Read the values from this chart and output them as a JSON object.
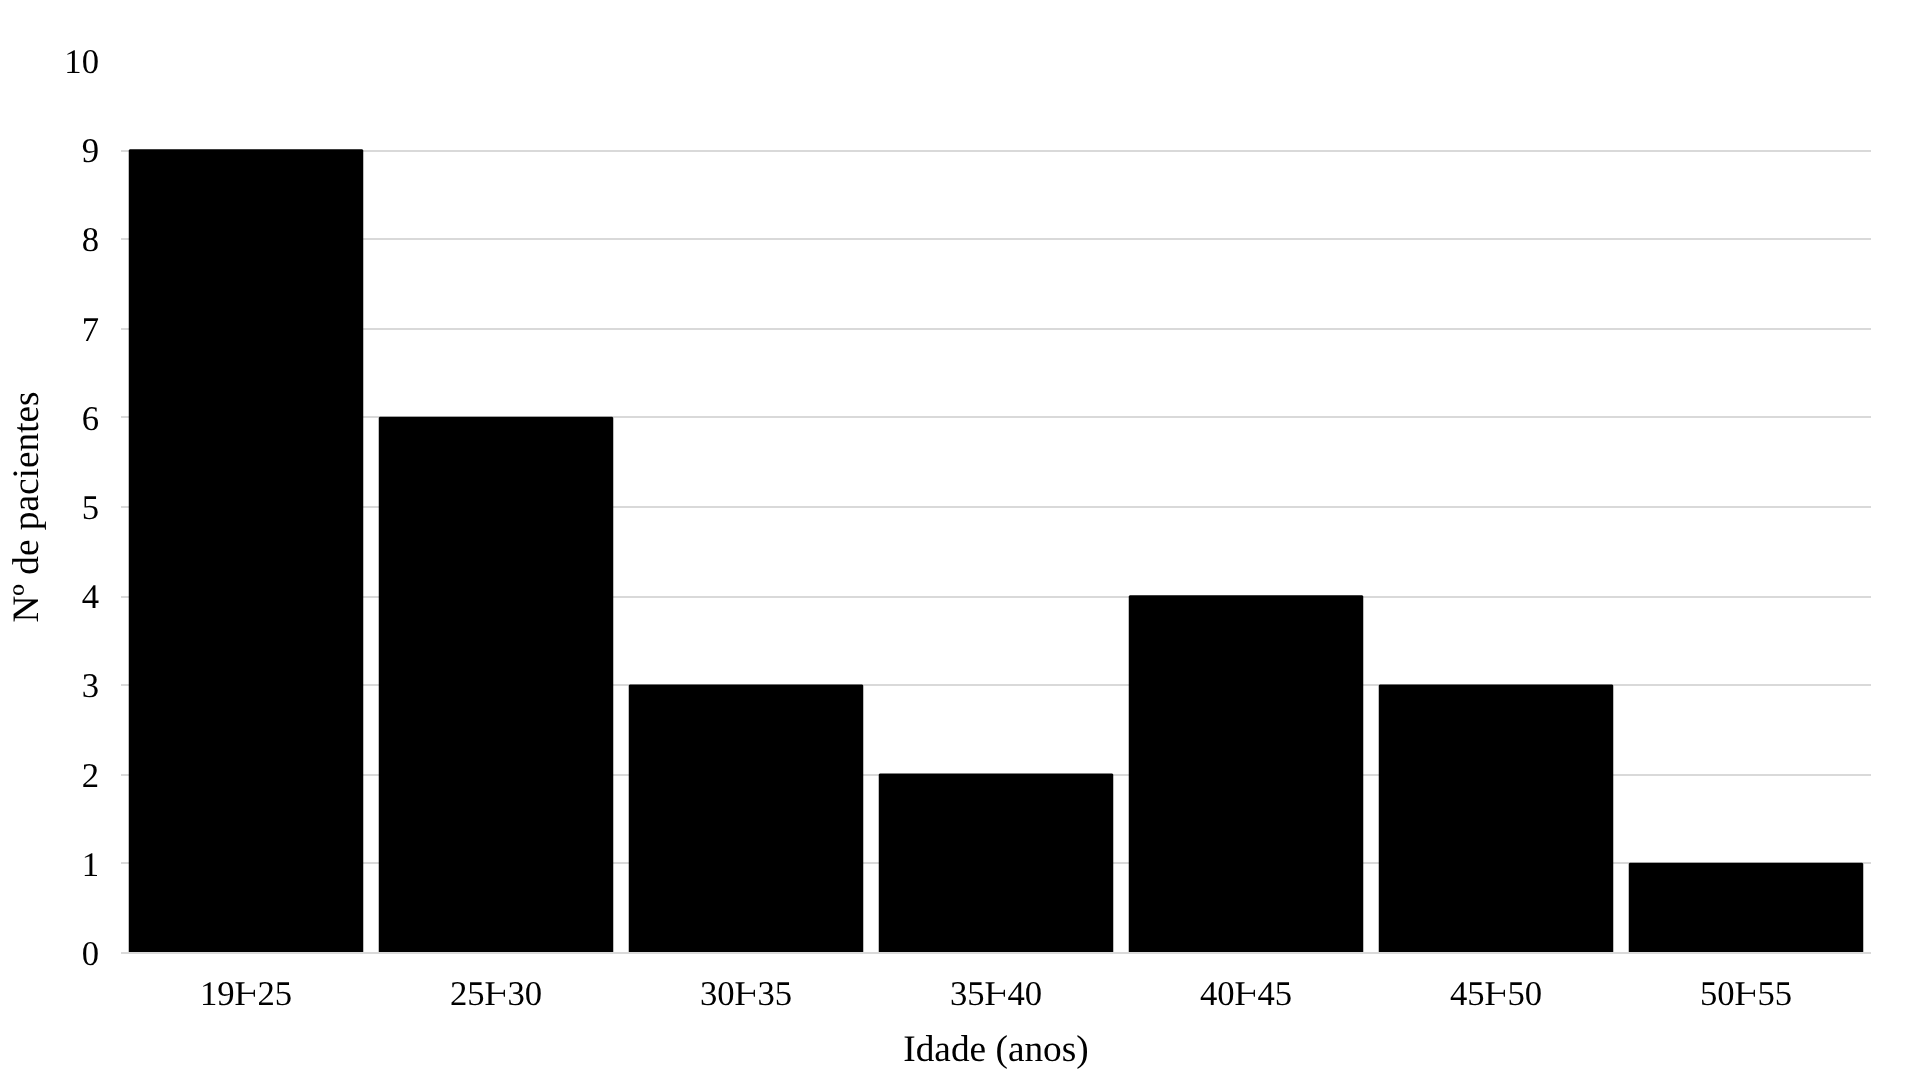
{
  "chart_data": {
    "type": "bar",
    "xlabel": "Idade (anos)",
    "ylabel": "Nº de pacientes",
    "categories": [
      "19Ⱶ25",
      "25Ⱶ30",
      "30Ⱶ35",
      "35Ⱶ40",
      "40Ⱶ45",
      "45Ⱶ50",
      "50Ⱶ55"
    ],
    "values": [
      9,
      6,
      3,
      2,
      4,
      3,
      1
    ],
    "color": "#000000",
    "ylim": [
      0,
      10
    ],
    "yticks": [
      0,
      1,
      2,
      3,
      4,
      5,
      6,
      7,
      8,
      9,
      10
    ],
    "grid": "y"
  }
}
